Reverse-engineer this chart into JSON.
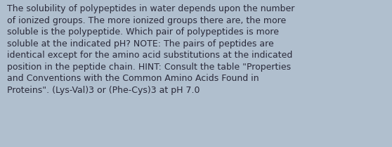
{
  "background_color": "#b0bfce",
  "text": "The solubility of polypeptides in water depends upon the number\nof ionized groups. The more ionized groups there are, the more\nsoluble is the polypeptide. Which pair of polypeptides is more\nsoluble at the indicated pH? NOTE: The pairs of peptides are\nidentical except for the amino acid substitutions at the indicated\nposition in the peptide chain. HINT: Consult the table \"Properties\nand Conventions with the Common Amino Acids Found in\nProteins\". (Lys-Val)3 or (Phe-Cys)3 at pH 7.0",
  "text_color": "#2a2a3a",
  "font_size": 9.0,
  "fig_width": 5.58,
  "fig_height": 2.09,
  "dpi": 100
}
